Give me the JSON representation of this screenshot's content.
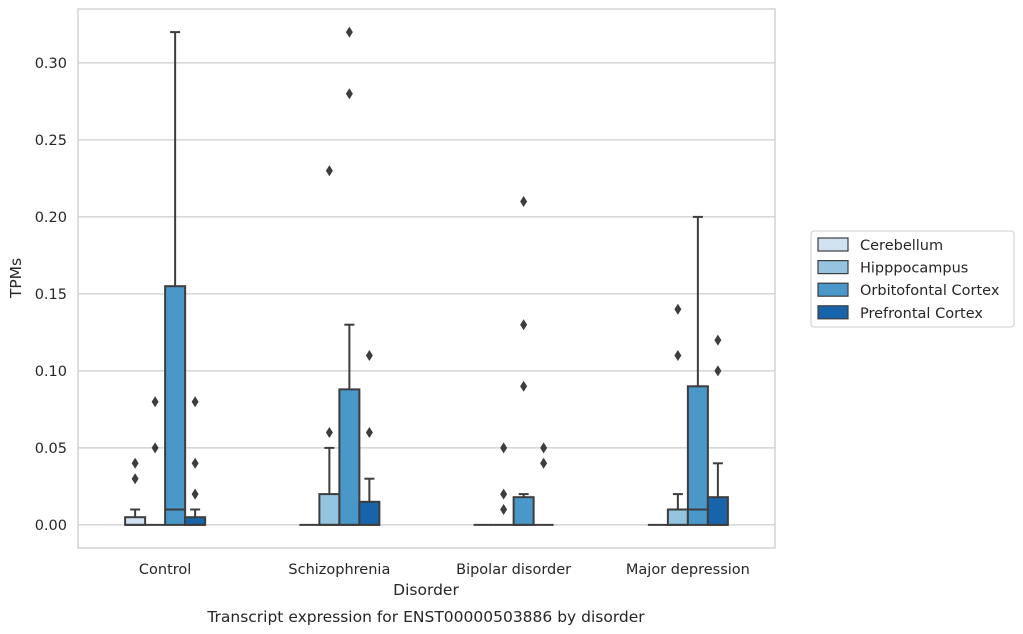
{
  "chart_data": {
    "type": "box",
    "caption": "Transcript expression for ENST00000503886 by disorder",
    "xlabel": "Disorder",
    "ylabel": "TPMs",
    "ylim": [
      -0.015,
      0.335
    ],
    "yticks": [
      0.0,
      0.05,
      0.1,
      0.15,
      0.2,
      0.25,
      0.3
    ],
    "ytick_labels": [
      "0.00",
      "0.05",
      "0.10",
      "0.15",
      "0.20",
      "0.25",
      "0.30"
    ],
    "grid": "horizontal",
    "legend_position": "right",
    "categories": [
      "Control",
      "Schizophrenia",
      "Bipolar disorder",
      "Major depression"
    ],
    "series": [
      {
        "name": "Cerebellum",
        "color": "#d0e1f2",
        "boxes": [
          {
            "q1": 0.0,
            "median": 0.0,
            "q3": 0.005,
            "whisker_low": 0.0,
            "whisker_high": 0.01,
            "outliers": [
              0.03,
              0.04
            ]
          },
          {
            "q1": 0.0,
            "median": 0.0,
            "q3": 0.0,
            "whisker_low": 0.0,
            "whisker_high": 0.0,
            "outliers": []
          },
          {
            "q1": 0.0,
            "median": 0.0,
            "q3": 0.0,
            "whisker_low": 0.0,
            "whisker_high": 0.0,
            "outliers": []
          },
          {
            "q1": 0.0,
            "median": 0.0,
            "q3": 0.0,
            "whisker_low": 0.0,
            "whisker_high": 0.0,
            "outliers": []
          }
        ]
      },
      {
        "name": "Hipppocampus",
        "color": "#94c4df",
        "boxes": [
          {
            "q1": 0.0,
            "median": 0.0,
            "q3": 0.0,
            "whisker_low": 0.0,
            "whisker_high": 0.0,
            "outliers": [
              0.05,
              0.08
            ]
          },
          {
            "q1": 0.0,
            "median": 0.0,
            "q3": 0.02,
            "whisker_low": 0.0,
            "whisker_high": 0.05,
            "outliers": [
              0.06,
              0.23
            ]
          },
          {
            "q1": 0.0,
            "median": 0.0,
            "q3": 0.0,
            "whisker_low": 0.0,
            "whisker_high": 0.0,
            "outliers": [
              0.01,
              0.02,
              0.05
            ]
          },
          {
            "q1": 0.0,
            "median": 0.0,
            "q3": 0.01,
            "whisker_low": 0.0,
            "whisker_high": 0.02,
            "outliers": [
              0.11,
              0.14
            ]
          }
        ]
      },
      {
        "name": "Orbitofontal Cortex",
        "color": "#4a98c9",
        "boxes": [
          {
            "q1": 0.0,
            "median": 0.01,
            "q3": 0.155,
            "whisker_low": 0.0,
            "whisker_high": 0.32,
            "outliers": []
          },
          {
            "q1": 0.0,
            "median": 0.0,
            "q3": 0.088,
            "whisker_low": 0.0,
            "whisker_high": 0.13,
            "outliers": [
              0.28,
              0.32
            ]
          },
          {
            "q1": 0.0,
            "median": 0.0,
            "q3": 0.018,
            "whisker_low": 0.0,
            "whisker_high": 0.02,
            "outliers": [
              0.09,
              0.13,
              0.21
            ]
          },
          {
            "q1": 0.0,
            "median": 0.01,
            "q3": 0.09,
            "whisker_low": 0.0,
            "whisker_high": 0.2,
            "outliers": []
          }
        ]
      },
      {
        "name": "Prefrontal Cortex",
        "color": "#1764ab",
        "boxes": [
          {
            "q1": 0.0,
            "median": 0.0,
            "q3": 0.005,
            "whisker_low": 0.0,
            "whisker_high": 0.01,
            "outliers": [
              0.02,
              0.04,
              0.08
            ]
          },
          {
            "q1": 0.0,
            "median": 0.0,
            "q3": 0.015,
            "whisker_low": 0.0,
            "whisker_high": 0.03,
            "outliers": [
              0.06,
              0.11
            ]
          },
          {
            "q1": 0.0,
            "median": 0.0,
            "q3": 0.0,
            "whisker_low": 0.0,
            "whisker_high": 0.0,
            "outliers": [
              0.04,
              0.05
            ]
          },
          {
            "q1": 0.0,
            "median": 0.0,
            "q3": 0.018,
            "whisker_low": 0.0,
            "whisker_high": 0.04,
            "outliers": [
              0.1,
              0.12
            ]
          }
        ]
      }
    ]
  }
}
